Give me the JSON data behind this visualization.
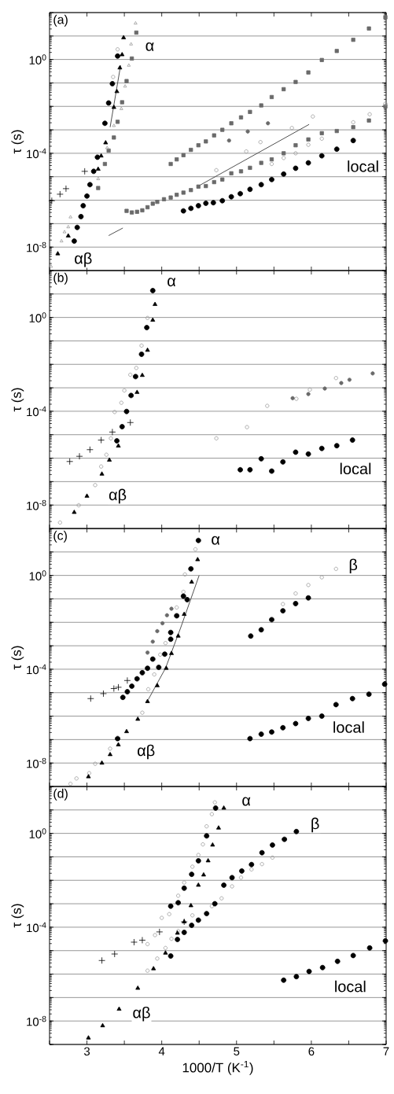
{
  "chart_data": [
    {
      "type": "scatter",
      "title": "(a)",
      "ylabel": "τ (s)",
      "log": "y",
      "grid": "y",
      "tick_labels": "y",
      "xlim": [
        2.5,
        7
      ],
      "ylim": [
        1e-09,
        100
      ],
      "xticks": [
        {
          "value": 2.5,
          "label": null
        },
        {
          "value": 3,
          "label": null
        },
        {
          "value": 3.5,
          "label": null
        },
        {
          "value": 4,
          "label": null
        },
        {
          "value": 4.5,
          "label": null
        },
        {
          "value": 5,
          "label": null
        },
        {
          "value": 5.5,
          "label": null
        },
        {
          "value": 6,
          "label": null
        },
        {
          "value": 6.5,
          "label": null
        },
        {
          "value": 7,
          "label": null
        }
      ],
      "yticks": [
        {
          "value": 1e-09,
          "label": null
        },
        {
          "value": 1e-08,
          "label": "10$^{-8}$"
        },
        {
          "value": 1e-07,
          "label": null
        },
        {
          "value": 1e-06,
          "label": null
        },
        {
          "value": 1e-05,
          "label": null
        },
        {
          "value": 0.0001,
          "label": "10$^{-4}$"
        },
        {
          "value": 0.001,
          "label": null
        },
        {
          "value": 0.01,
          "label": null
        },
        {
          "value": 0.1,
          "label": null
        },
        {
          "value": 1,
          "label": "10$^{0}$"
        },
        {
          "value": 10,
          "label": null
        },
        {
          "value": 100,
          "label": null
        }
      ],
      "series": [
        {
          "marker": "square",
          "color": "#6a6a6a",
          "x": [
            3.53,
            3.6,
            3.67,
            3.74,
            3.81,
            3.88,
            3.94,
            4.03,
            4.12,
            4.2,
            4.29,
            4.39,
            4.49,
            4.59,
            4.7,
            4.81,
            4.93,
            5.06,
            5.18,
            5.33,
            5.47,
            5.63,
            5.79,
            5.96,
            6.14,
            6.34,
            6.56,
            6.77,
            6.99
          ],
          "values": [
            3.5e-07,
            3e-07,
            3.2e-07,
            3.7e-07,
            5e-07,
            7.1e-07,
            8.5e-07,
            1.1e-06,
            1.3e-06,
            1.7e-06,
            2.1e-06,
            2.7e-06,
            3.8e-06,
            4e-06,
            5.9e-06,
            7.6e-06,
            1.4e-05,
            1.7e-05,
            2.4e-05,
            3.9e-05,
            5.5e-05,
            0.0001,
            0.00022,
            0.00039,
            0.00072,
            0.00089,
            0.0013,
            0.0025,
            0.01
          ]
        },
        {
          "marker": "square",
          "color": "#6a6a6a",
          "x": [
            4.12,
            4.2,
            4.29,
            4.39,
            4.49,
            4.59,
            4.7,
            4.81,
            4.93,
            5.06,
            5.18,
            5.33,
            5.47,
            5.63,
            5.79,
            5.96,
            6.14,
            6.34,
            6.56,
            6.77,
            6.99
          ],
          "values": [
            3.5e-05,
            5.5e-05,
            8.3e-05,
            0.00014,
            0.00022,
            0.00032,
            0.00058,
            0.001,
            0.0019,
            0.0034,
            0.0058,
            0.011,
            0.025,
            0.054,
            0.11,
            0.28,
            0.95,
            2.3,
            6.9,
            21,
            63
          ]
        },
        {
          "marker": "square",
          "color": "#6a6a6a",
          "x": [
            3.15,
            3.24,
            3.29,
            3.36,
            3.41,
            3.47,
            3.53,
            3.6,
            3.66
          ],
          "values": [
            3.3e-06,
            3.5e-05,
            0.00013,
            0.00047,
            0.0022,
            0.015,
            0.12,
            1.1,
            14
          ]
        },
        {
          "marker": "triangle",
          "color": "#9a9a9a",
          "x": [
            2.52,
            2.66,
            2.7,
            2.75,
            2.78,
            3.15,
            3.27,
            3.36,
            3.46,
            3.51,
            3.56,
            3.59,
            3.65
          ],
          "values": [
            1.5e-09,
            1.8e-08,
            4.4e-08,
            7.2e-08,
            1.9e-07,
            8.1e-06,
            0.00017,
            0.0015,
            0.0079,
            0.072,
            0.56,
            4.5,
            35
          ]
        },
        {
          "marker": "circle",
          "color": "#9a9a9a",
          "x": [
            3.35,
            3.41,
            4.73,
            5.13,
            5.32,
            5.47,
            5.63,
            5.74,
            5.79,
            5.96,
            6.02,
            6.14,
            6.56,
            6.78,
            6.99
          ],
          "values": [
            0.18,
            2.7,
            1.9e-05,
            0.00012,
            0.0003,
            3.5e-05,
            6.3e-05,
            0.0012,
            0.0001,
            0.00023,
            0.0037,
            0.00042,
            0.0021,
            0.0046,
            0.013
          ]
        },
        {
          "marker": "circle",
          "color": "#6a6a6a",
          "x": [
            4.9,
            5.15,
            5.42
          ],
          "values": [
            0.00035,
            0.00085,
            0.0019
          ]
        },
        {
          "type": "line",
          "marker": "none",
          "color": "#505050",
          "x": [
            4.49,
            5.97
          ],
          "values": [
            4e-06,
            0.0017
          ]
        },
        {
          "type": "line",
          "marker": "none",
          "color": "#505050",
          "x": [
            3.29,
            3.48
          ],
          "values": [
            3.1e-08,
            6.5e-08
          ]
        },
        {
          "type": "line",
          "marker": "none",
          "color": "#505050",
          "x": [
            3.31,
            3.45
          ],
          "values": [
            0.0013,
            0.56
          ]
        },
        {
          "marker": "cross",
          "color": "#000000",
          "x": [
            2.53,
            2.64,
            2.72,
            2.97
          ],
          "values": [
            9.5e-07,
            1.8e-06,
            3.1e-06,
            1.7e-05
          ]
        },
        {
          "marker": "triangle",
          "color": "#000000",
          "x": [
            2.61,
            2.75,
            3.15,
            3.19,
            3.25,
            3.36,
            3.4,
            3.44,
            3.47,
            3.49
          ],
          "values": [
            5.2e-09,
            3e-08,
            2.1e-05,
            7.7e-05,
            0.00028,
            0.0091,
            0.043,
            0.44,
            1.6,
            8.5
          ]
        },
        {
          "marker": "circle",
          "color": "#000000",
          "x": [
            2.83,
            2.87,
            2.92,
            2.95,
            3.0,
            3.04,
            3.09,
            3.14,
            3.24,
            3.29,
            3.34,
            3.41
          ],
          "values": [
            1.8e-08,
            6.9e-08,
            2e-07,
            5.8e-07,
            1.5e-06,
            4.6e-06,
            1.7e-05,
            6.8e-05,
            0.0019,
            0.014,
            0.093,
            1.4
          ]
        },
        {
          "marker": "circle",
          "color": "#000000",
          "x": [
            4.29,
            4.39,
            4.49,
            4.59,
            4.69,
            4.81,
            4.93,
            5.05,
            5.18,
            5.33,
            5.47,
            5.63,
            5.79,
            5.96,
            6.14,
            6.34,
            6.56
          ],
          "values": [
            3.5e-07,
            4.5e-07,
            5.8e-07,
            7.4e-07,
            7.8e-07,
            9.5e-07,
            1.4e-06,
            1.9e-06,
            2.9e-06,
            4.6e-06,
            7.6e-06,
            1.3e-05,
            2.3e-05,
            3.9e-05,
            7.8e-05,
            0.00015,
            0.00035
          ]
        }
      ],
      "annotations": [
        {
          "text": "α",
          "x": 3.84,
          "y": 3.5
        },
        {
          "text": "αβ",
          "x": 2.95,
          "y": 2.9e-09
        },
        {
          "text": "local",
          "x": 6.69,
          "y": 2.8e-05
        }
      ]
    },
    {
      "type": "scatter",
      "title": "(b)",
      "ylabel": "τ (s)",
      "log": "y",
      "grid": "y",
      "tick_labels": "y",
      "xlim": [
        2.5,
        7
      ],
      "ylim": [
        1e-09,
        100
      ],
      "xticks": [
        {
          "value": 2.5,
          "label": null
        },
        {
          "value": 3,
          "label": null
        },
        {
          "value": 3.5,
          "label": null
        },
        {
          "value": 4,
          "label": null
        },
        {
          "value": 4.5,
          "label": null
        },
        {
          "value": 5,
          "label": null
        },
        {
          "value": 5.5,
          "label": null
        },
        {
          "value": 6,
          "label": null
        },
        {
          "value": 6.5,
          "label": null
        },
        {
          "value": 7,
          "label": null
        }
      ],
      "yticks": [
        {
          "value": 1e-09,
          "label": null
        },
        {
          "value": 1e-08,
          "label": "10$^{-8}$"
        },
        {
          "value": 1e-07,
          "label": null
        },
        {
          "value": 1e-06,
          "label": null
        },
        {
          "value": 1e-05,
          "label": null
        },
        {
          "value": 0.0001,
          "label": "10$^{-4}$"
        },
        {
          "value": 0.001,
          "label": null
        },
        {
          "value": 0.01,
          "label": null
        },
        {
          "value": 0.1,
          "label": null
        },
        {
          "value": 1,
          "label": "10$^{0}$"
        },
        {
          "value": 10,
          "label": null
        },
        {
          "value": 100,
          "label": null
        }
      ],
      "series": [
        {
          "marker": "circle",
          "color": "#9a9a9a",
          "x": [
            2.64,
            2.89,
            3.11,
            3.19,
            3.26,
            3.32,
            3.37,
            3.46,
            3.5,
            3.58,
            3.66,
            3.73,
            3.81,
            4.73,
            5.14,
            5.41,
            5.8,
            5.98,
            6.33
          ],
          "values": [
            1.8e-09,
            9.8e-09,
            7.1e-08,
            4.4e-07,
            1.4e-06,
            7e-06,
            9.3e-05,
            0.00023,
            0.00077,
            0.0036,
            0.007,
            0.063,
            0.95,
            7e-06,
            2.1e-05,
            0.00017,
            0.00034,
            0.00083,
            0.0026
          ]
        },
        {
          "marker": "circle",
          "color": "#6a6a6a",
          "x": [
            5.75,
            5.96,
            6.18,
            6.4,
            6.51,
            6.82
          ],
          "values": [
            0.00036,
            0.00054,
            0.00093,
            0.0016,
            0.0022,
            0.0041
          ]
        },
        {
          "marker": "cross",
          "color": "#000000",
          "x": [
            2.77,
            2.9,
            3.04,
            3.19,
            3.34,
            3.58
          ],
          "values": [
            7.2e-07,
            1.2e-06,
            2.3e-06,
            5.9e-06,
            1.3e-05,
            3.3e-05
          ]
        },
        {
          "marker": "triangle",
          "color": "#000000",
          "x": [
            2.83,
            3.0,
            3.2,
            3.3,
            3.42,
            3.67,
            3.74,
            3.81,
            3.88,
            3.91
          ],
          "values": [
            4.9e-09,
            2.4e-08,
            2.1e-07,
            8.3e-07,
            3.3e-06,
            0.00064,
            0.0034,
            0.04,
            0.77,
            3.6
          ]
        },
        {
          "marker": "circle",
          "color": "#000000",
          "x": [
            3.4,
            3.47,
            3.53,
            3.59,
            3.65,
            3.73,
            3.8,
            3.88
          ],
          "values": [
            5.5e-06,
            2.2e-05,
            9.8e-05,
            0.00047,
            0.003,
            0.027,
            0.37,
            14
          ]
        },
        {
          "marker": "circle",
          "color": "#000000",
          "x": [
            5.05,
            5.18,
            5.33,
            5.47,
            5.62,
            5.79,
            5.96,
            6.14,
            6.34,
            6.55
          ],
          "values": [
            3.2e-07,
            3.2e-07,
            9.4e-07,
            2.8e-07,
            6.9e-07,
            1.8e-06,
            1.5e-06,
            2.6e-06,
            3.4e-06,
            5.9e-06
          ]
        }
      ],
      "annotations": [
        {
          "text": "α",
          "x": 4.13,
          "y": 32
        },
        {
          "text": "αβ",
          "x": 3.41,
          "y": 2.4e-08
        },
        {
          "text": "local",
          "x": 6.59,
          "y": 3.6e-07
        }
      ]
    },
    {
      "type": "scatter",
      "title": "(c)",
      "ylabel": "τ (s)",
      "log": "y",
      "grid": "y",
      "tick_labels": "y",
      "xlim": [
        2.5,
        7
      ],
      "ylim": [
        1e-09,
        100
      ],
      "xticks": [
        {
          "value": 2.5,
          "label": null
        },
        {
          "value": 3,
          "label": null
        },
        {
          "value": 3.5,
          "label": null
        },
        {
          "value": 4,
          "label": null
        },
        {
          "value": 4.5,
          "label": null
        },
        {
          "value": 5,
          "label": null
        },
        {
          "value": 5.5,
          "label": null
        },
        {
          "value": 6,
          "label": null
        },
        {
          "value": 6.5,
          "label": null
        },
        {
          "value": 7,
          "label": null
        }
      ],
      "yticks": [
        {
          "value": 1e-09,
          "label": null
        },
        {
          "value": 1e-08,
          "label": "10$^{-8}$"
        },
        {
          "value": 1e-07,
          "label": null
        },
        {
          "value": 1e-06,
          "label": null
        },
        {
          "value": 1e-05,
          "label": null
        },
        {
          "value": 0.0001,
          "label": "10$^{-4}$"
        },
        {
          "value": 0.001,
          "label": null
        },
        {
          "value": 0.01,
          "label": null
        },
        {
          "value": 0.1,
          "label": null
        },
        {
          "value": 1,
          "label": "10$^{0}$"
        },
        {
          "value": 10,
          "label": null
        },
        {
          "value": 100,
          "label": null
        }
      ],
      "series": [
        {
          "marker": "circle",
          "color": "#9a9a9a",
          "x": [
            2.78,
            2.86,
            3.03,
            3.11,
            3.31,
            3.74,
            3.82,
            3.9,
            3.98,
            4.05,
            4.2,
            4.29,
            4.31,
            4.45,
            5.62,
            5.79,
            5.96,
            6.14,
            6.33
          ],
          "values": [
            1.3e-09,
            2.2e-09,
            3.7e-09,
            9.3e-09,
            4.1e-08,
            1.4e-06,
            1.4e-05,
            6e-05,
            0.00042,
            0.0013,
            0.043,
            0.2,
            1.1,
            13,
            0.06,
            0.17,
            0.39,
            0.83,
            1.9
          ]
        },
        {
          "marker": "circle",
          "color": "#6a6a6a",
          "x": [
            3.81,
            3.88,
            3.94,
            4.01,
            4.07,
            4.13
          ],
          "values": [
            0.00051,
            0.0015,
            0.0042,
            0.0091,
            0.02,
            0.038
          ]
        },
        {
          "type": "line",
          "marker": "none",
          "color": "#505050",
          "x": [
            3.82,
            4.05,
            4.25,
            4.5
          ],
          "values": [
            5.1e-06,
            0.00011,
            0.0055,
            1
          ]
        },
        {
          "marker": "cross",
          "color": "#000000",
          "x": [
            3.05,
            3.22,
            3.36,
            3.42,
            3.54
          ],
          "values": [
            5.6e-06,
            9.1e-06,
            1.5e-05,
            1.7e-05,
            3.3e-05
          ]
        },
        {
          "marker": "triangle",
          "color": "#000000",
          "x": [
            3.02,
            3.2,
            3.31,
            3.42,
            3.53,
            3.68,
            3.81,
            3.94,
            4.06,
            4.13,
            4.22,
            4.3,
            4.4,
            4.48
          ],
          "values": [
            2.6e-09,
            1e-08,
            2.3e-08,
            6e-08,
            2.2e-07,
            7.4e-07,
            4.2e-06,
            2e-05,
            0.00011,
            0.00047,
            0.0026,
            0.022,
            0.52,
            4.7
          ]
        },
        {
          "marker": "circle",
          "color": "#000000",
          "x": [
            3.41,
            3.48,
            3.54,
            3.6,
            3.67,
            3.74,
            3.81,
            3.88,
            3.96,
            4.04,
            4.12,
            4.12,
            4.2,
            4.29,
            4.34,
            4.39,
            4.49
          ],
          "values": [
            1.1e-07,
            6.3e-06,
            1.1e-05,
            1.9e-05,
            3.9e-05,
            7.1e-05,
            0.00011,
            0.00027,
            0.00012,
            0.00044,
            0.0019,
            0.0037,
            0.019,
            0.13,
            0.093,
            1.9,
            31
          ]
        },
        {
          "marker": "circle",
          "color": "#000000",
          "x": [
            5.19,
            5.33,
            5.47,
            5.62,
            5.79,
            5.96
          ],
          "values": [
            0.0026,
            0.0048,
            0.013,
            0.031,
            0.063,
            0.11
          ]
        },
        {
          "marker": "circle",
          "color": "#000000",
          "x": [
            5.18,
            5.33,
            5.47,
            5.62,
            5.79,
            5.96,
            6.14,
            6.33,
            6.55,
            6.77,
            6.98
          ],
          "values": [
            1.1e-07,
            1.7e-07,
            2.1e-07,
            3.2e-07,
            4.8e-07,
            8e-07,
            1e-06,
            3.1e-06,
            5.6e-06,
            8.6e-06,
            2.3e-05
          ]
        }
      ],
      "annotations": [
        {
          "text": "α",
          "x": 4.72,
          "y": 31
        },
        {
          "text": "β",
          "x": 6.56,
          "y": 2.5
        },
        {
          "text": "αβ",
          "x": 3.79,
          "y": 3e-08
        },
        {
          "text": "local",
          "x": 6.5,
          "y": 3.4e-07
        }
      ]
    },
    {
      "type": "scatter",
      "title": "(d)",
      "xlabel": "1000/T (K$^{-1}$)",
      "ylabel": "τ (s)",
      "log": "y",
      "grid": "y",
      "xlim": [
        2.5,
        7
      ],
      "ylim": [
        1e-09,
        100
      ],
      "xticks": [
        {
          "value": 2.5,
          "label": null
        },
        {
          "value": 3,
          "label": "3"
        },
        {
          "value": 3.5,
          "label": null
        },
        {
          "value": 4,
          "label": "4"
        },
        {
          "value": 4.5,
          "label": null
        },
        {
          "value": 5,
          "label": "5"
        },
        {
          "value": 5.5,
          "label": null
        },
        {
          "value": 6,
          "label": "6"
        },
        {
          "value": 6.5,
          "label": null
        },
        {
          "value": 7,
          "label": "7"
        }
      ],
      "yticks": [
        {
          "value": 1e-09,
          "label": null
        },
        {
          "value": 1e-08,
          "label": "10$^{-8}$"
        },
        {
          "value": 1e-07,
          "label": null
        },
        {
          "value": 1e-06,
          "label": null
        },
        {
          "value": 1e-05,
          "label": null
        },
        {
          "value": 0.0001,
          "label": "10$^{-4}$"
        },
        {
          "value": 0.001,
          "label": null
        },
        {
          "value": 0.01,
          "label": null
        },
        {
          "value": 0.1,
          "label": null
        },
        {
          "value": 1,
          "label": "10$^{0}$"
        },
        {
          "value": 10,
          "label": null
        },
        {
          "value": 100,
          "label": null
        }
      ],
      "series": [
        {
          "marker": "circle",
          "color": "#9a9a9a",
          "x": [
            3.81,
            3.91,
            4.0,
            4.1,
            4.22,
            4.3,
            4.41,
            4.49,
            4.55,
            4.6,
            4.67,
            4.71
          ],
          "values": [
            1.9e-05,
            4.6e-05,
            0.00025,
            0.00036,
            0.0022,
            0.008,
            0.038,
            0.12,
            0.34,
            2,
            6.6,
            21
          ]
        },
        {
          "marker": "circle",
          "color": "#9a9a9a",
          "x": [
            3.81,
            3.94,
            4.05,
            4.13,
            4.22,
            4.41,
            4.67,
            4.8,
            4.94,
            5.06,
            5.2,
            5.34,
            5.48
          ],
          "values": [
            1.4e-06,
            4.6e-06,
            1.3e-05,
            3.2e-05,
            6.8e-05,
            0.00032,
            0.00079,
            0.0017,
            0.0055,
            0.013,
            0.029,
            0.049,
            0.093
          ]
        },
        {
          "marker": "cross",
          "color": "#000000",
          "x": [
            3.2,
            3.37,
            3.63,
            3.74,
            3.97,
            4.3
          ],
          "values": [
            3.8e-06,
            7.2e-06,
            2.3e-05,
            2.8e-05,
            6.3e-05,
            0.00017
          ]
        },
        {
          "marker": "triangle",
          "color": "#000000",
          "x": [
            3.02,
            3.21,
            3.43,
            3.68,
            3.89,
            4.05,
            4.21,
            4.3,
            4.39,
            4.49,
            4.56,
            4.62,
            4.68,
            4.76,
            4.83
          ],
          "values": [
            1.9e-09,
            6.3e-09,
            3.2e-08,
            2.5e-07,
            1.7e-06,
            7.9e-06,
            5.6e-05,
            0.00017,
            0.00083,
            0.0062,
            0.017,
            0.068,
            0.32,
            1.7,
            12
          ]
        },
        {
          "marker": "circle",
          "color": "#000000",
          "x": [
            4.12,
            4.22,
            4.3,
            4.4,
            4.49,
            4.6,
            4.72
          ],
          "values": [
            0.00079,
            0.0011,
            0.0046,
            0.018,
            0.068,
            0.78,
            12
          ]
        },
        {
          "marker": "circle",
          "color": "#000000",
          "x": [
            4.12,
            4.21,
            4.3,
            4.4,
            4.49,
            4.6,
            4.71,
            4.83,
            4.94,
            5.07,
            5.2,
            5.34,
            5.48,
            5.64,
            5.8
          ],
          "values": [
            5.9e-06,
            3e-05,
            6e-05,
            0.00012,
            0.0002,
            0.00038,
            0.001,
            0.0062,
            0.013,
            0.025,
            0.047,
            0.15,
            0.32,
            0.56,
            1.2
          ]
        },
        {
          "marker": "circle",
          "color": "#000000",
          "x": [
            5.63,
            5.8,
            5.97,
            6.15,
            6.35,
            6.56,
            6.78,
            6.99
          ],
          "values": [
            5.5e-07,
            7.8e-07,
            1.3e-06,
            1.9e-06,
            3.5e-06,
            6.2e-06,
            1.3e-05,
            2.6e-05
          ]
        }
      ],
      "annotations": [
        {
          "text": "α",
          "x": 5.13,
          "y": 23
        },
        {
          "text": "β",
          "x": 6.05,
          "y": 2.3
        },
        {
          "text": "αβ",
          "x": 3.73,
          "y": 2e-08
        },
        {
          "text": "local",
          "x": 6.52,
          "y": 3e-07
        }
      ]
    }
  ]
}
